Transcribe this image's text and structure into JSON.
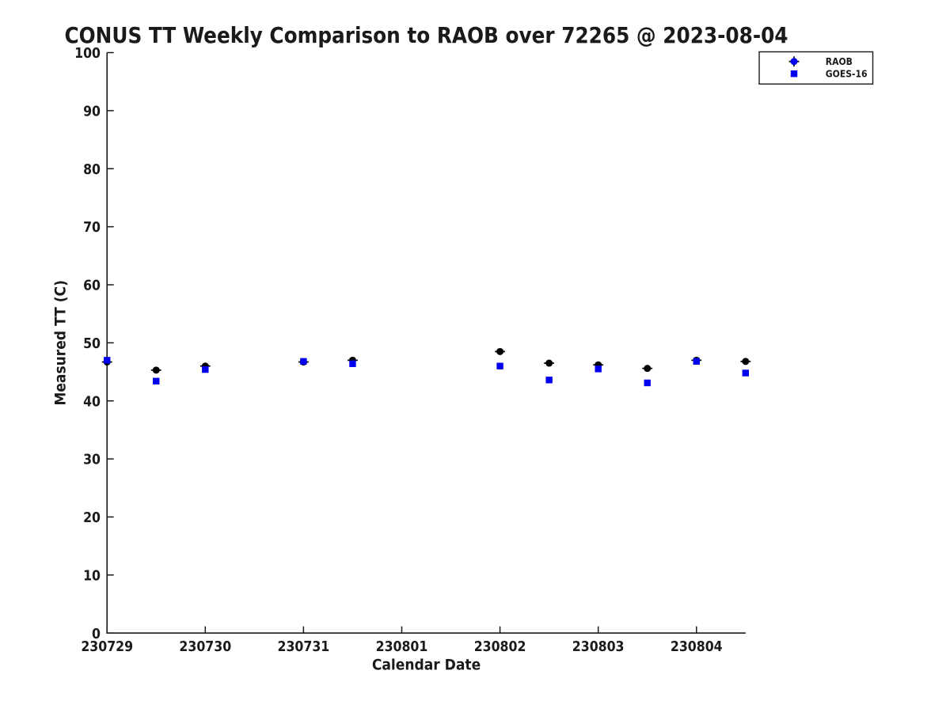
{
  "title": "CONUS TT Weekly Comparison to RAOB over 72265 @ 2023-08-04",
  "chart_data": {
    "type": "scatter",
    "title": "CONUS TT Weekly Comparison to RAOB over 72265 @ 2023-08-04",
    "xlabel": "Calendar Date",
    "ylabel": "Measured TT (C)",
    "xlim": [
      230729.0,
      230804.5
    ],
    "ylim": [
      0,
      100
    ],
    "x_tick_labels": [
      "230729",
      "230730",
      "230731",
      "230801",
      "230802",
      "230803",
      "230804"
    ],
    "x_tick_days": [
      0,
      1,
      2,
      3,
      4,
      5,
      6
    ],
    "y_ticks": [
      0,
      10,
      20,
      30,
      40,
      50,
      60,
      70,
      80,
      90,
      100
    ],
    "grid": "off",
    "legend_position": "top-right",
    "x_days": [
      0,
      0.5,
      1,
      2,
      2.5,
      4,
      4.5,
      5,
      5.5,
      6,
      6.5
    ],
    "x_dates": [
      230729.0,
      230729.5,
      230730.0,
      230731.0,
      230731.5,
      230802.0,
      230802.5,
      230803.0,
      230803.5,
      230804.0,
      230804.5
    ],
    "series": [
      {
        "name": "RAOB",
        "marker": "circle",
        "plot_color": "#000000",
        "legend_color": "#0000ee",
        "errorbar_color": "#000000",
        "values": [
          46.7,
          45.3,
          46.0,
          46.7,
          47.0,
          48.5,
          46.5,
          46.2,
          45.6,
          47.0,
          46.8
        ]
      },
      {
        "name": "GOES-16",
        "marker": "square",
        "plot_color": "#0000ee",
        "legend_color": "#0000ee",
        "errorbar_color": "",
        "values": [
          47.0,
          43.4,
          45.4,
          46.8,
          46.4,
          46.0,
          43.6,
          45.5,
          43.1,
          46.8,
          44.8
        ]
      }
    ]
  }
}
